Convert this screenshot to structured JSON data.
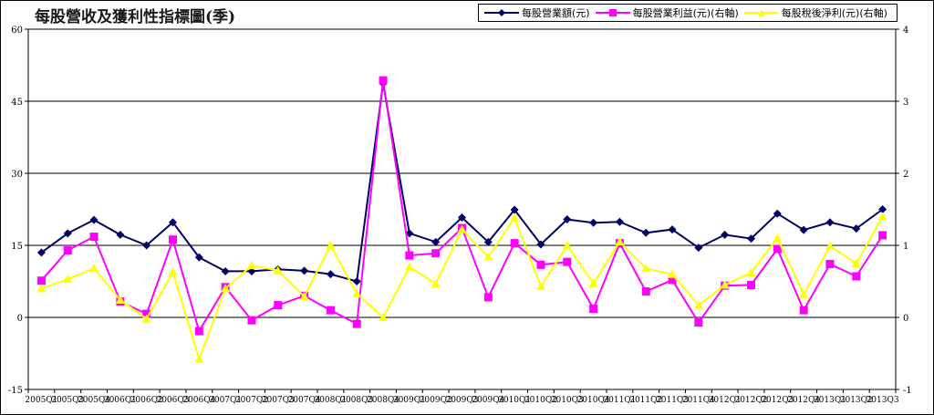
{
  "chart_data": {
    "type": "line",
    "title": "每股營收及獲利性指標圖(季)",
    "categories": [
      "2005Q1",
      "2005Q3",
      "2005Q4",
      "2006Q1",
      "2006Q2",
      "2006Q3",
      "2006Q4",
      "2007Q1",
      "2007Q2",
      "2007Q3",
      "2007Q4",
      "2008Q1",
      "2008Q3",
      "2008Q4",
      "2009Q1",
      "2009Q2",
      "2009Q3",
      "2009Q4",
      "2010Q1",
      "2010Q2",
      "2010Q3",
      "2010Q4",
      "2011Q1",
      "2011Q2",
      "2011Q3",
      "2011Q4",
      "2012Q1",
      "2012Q2",
      "2012Q3",
      "2012Q4",
      "2013Q1",
      "2013Q2",
      "2013Q3"
    ],
    "left_axis": {
      "min": -15,
      "max": 60,
      "ticks": [
        -15,
        0,
        15,
        30,
        45,
        60
      ]
    },
    "right_axis": {
      "min": -1,
      "max": 4,
      "ticks": [
        -1,
        0,
        1,
        2,
        3,
        4
      ]
    },
    "grid": "horizontal",
    "legend_position": "top-right",
    "series": [
      {
        "name": "每股營業額(元)",
        "axis": "left",
        "color": "#000066",
        "marker": "diamond",
        "values": [
          13.5,
          17.5,
          20.3,
          17.2,
          15.0,
          19.8,
          12.5,
          9.6,
          9.6,
          10.0,
          9.7,
          9.0,
          7.5,
          48.7,
          17.5,
          15.7,
          20.8,
          15.7,
          22.4,
          15.2,
          20.4,
          19.7,
          19.9,
          17.6,
          18.3,
          14.5,
          17.2,
          16.4,
          21.6,
          18.2,
          19.8,
          18.5,
          22.5
        ]
      },
      {
        "name": "每股營業利益(元)(右軸)",
        "axis": "right",
        "color": "#ff00ff",
        "marker": "square",
        "values": [
          0.51,
          0.93,
          1.12,
          0.22,
          0.05,
          1.08,
          -0.19,
          0.42,
          -0.04,
          0.17,
          0.3,
          0.1,
          -0.09,
          3.29,
          0.86,
          0.89,
          1.24,
          0.28,
          1.03,
          0.73,
          0.77,
          0.12,
          1.03,
          0.36,
          0.52,
          -0.07,
          0.44,
          0.45,
          0.95,
          0.1,
          0.74,
          0.57,
          1.14
        ]
      },
      {
        "name": "每股稅後淨利(元)(右軸)",
        "axis": "right",
        "color": "#ffff00",
        "marker": "triangle",
        "values": [
          0.4,
          0.53,
          0.68,
          0.24,
          -0.02,
          0.63,
          -0.58,
          0.4,
          0.72,
          0.65,
          0.29,
          1.0,
          0.33,
          0.0,
          0.7,
          0.47,
          1.22,
          0.84,
          1.38,
          0.43,
          1.0,
          0.47,
          1.05,
          0.68,
          0.6,
          0.17,
          0.45,
          0.62,
          1.1,
          0.32,
          0.99,
          0.75,
          1.4
        ]
      }
    ]
  }
}
